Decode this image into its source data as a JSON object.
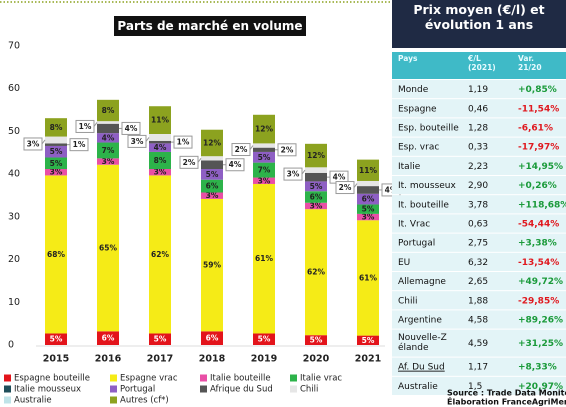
{
  "chart_data": {
    "type": "stacked_bar",
    "title": "Parts de marché en volume",
    "categories": [
      "2015",
      "2016",
      "2017",
      "2018",
      "2019",
      "2020",
      "2021"
    ],
    "ylim": [
      0,
      70
    ],
    "yticks": [
      0,
      10,
      20,
      30,
      40,
      50,
      60,
      70
    ],
    "grid": false,
    "series": [
      {
        "name": "Espagne bouteille",
        "color": "#e3141b",
        "values": [
          2.7,
          3.2,
          2.7,
          3.2,
          2.7,
          2.3,
          2.2
        ],
        "value_labels": [
          "5%",
          "6%",
          "5%",
          "6%",
          "5%",
          "5%",
          "5%"
        ]
      },
      {
        "name": "Espagne vrac",
        "color": "#f5eb17",
        "values": [
          37,
          39,
          37,
          31,
          35,
          29.5,
          27
        ],
        "value_labels": [
          "68%",
          "65%",
          "62%",
          "59%",
          "61%",
          "62%",
          "61%"
        ]
      },
      {
        "name": "Italie bouteille",
        "color": "#e94fa6",
        "values": [
          1.5,
          1.5,
          1.5,
          1.5,
          1.5,
          1.5,
          1.5
        ],
        "value_labels": [
          "3%",
          "3%",
          "3%",
          "3%",
          "3%",
          "3%",
          "3%"
        ]
      },
      {
        "name": "Italie vrac",
        "color": "#2db34a",
        "values": [
          2.7,
          3.7,
          4,
          3,
          3.5,
          2.7,
          2.2
        ],
        "value_labels": [
          "5%",
          "7%",
          "8%",
          "6%",
          "7%",
          "6%",
          "5%"
        ]
      },
      {
        "name": "Italie mousseux",
        "color": "#1f4e5a",
        "values": [
          null,
          null,
          null,
          null,
          null,
          null,
          null
        ]
      },
      {
        "name": "Portugal",
        "color": "#8e5fc4",
        "values": [
          2.7,
          2.2,
          2,
          2.5,
          2.5,
          2.3,
          2.5
        ],
        "value_labels": [
          "5%",
          "4%",
          "4%",
          "5%",
          "5%",
          "5%",
          "6%"
        ]
      },
      {
        "name": "Afrique du Sud",
        "color": "#555555",
        "values": [
          0.6,
          2.2,
          0.6,
          2,
          1,
          2,
          1.8
        ],
        "value_labels": [
          "1%",
          "4%",
          "1%",
          "4%",
          "2%",
          "4%",
          "4%"
        ]
      },
      {
        "name": "Chili",
        "color": "#e6e6e6",
        "values": [
          1.6,
          0.6,
          1.6,
          1,
          1,
          1.3,
          1.2
        ],
        "value_labels": [
          "3%",
          "1%",
          "3%",
          "2%",
          "2%",
          "3%",
          "2%"
        ]
      },
      {
        "name": "Australie",
        "color": "#bfe3e8",
        "values": [
          null,
          null,
          null,
          null,
          null,
          null,
          null
        ]
      },
      {
        "name": "Autres (cf*)",
        "color": "#8ca21f",
        "values": [
          4.3,
          5,
          6.5,
          6.2,
          6.7,
          5.5,
          5
        ],
        "value_labels": [
          "8%",
          "8%",
          "11%",
          "12%",
          "12%",
          "12%",
          "11%"
        ]
      }
    ]
  },
  "table": {
    "title": "Prix moyen (€/l) et évolution 1 ans",
    "header": [
      "Pays",
      "€/L (2021)",
      "Var. 21/20"
    ],
    "rows": [
      [
        "Monde",
        "1,19",
        "+0,85%"
      ],
      [
        "Espagne",
        "0,46",
        "-11,54%"
      ],
      [
        "Esp. bouteille",
        "1,28",
        "-6,61%"
      ],
      [
        "Esp. vrac",
        "0,33",
        "-17,97%"
      ],
      [
        "Italie",
        "2,23",
        "+14,95%"
      ],
      [
        "It. mousseux",
        "2,90",
        "+0,26%"
      ],
      [
        "It. bouteille",
        "3,78",
        "+118,68%"
      ],
      [
        "It. Vrac",
        "0,63",
        "-54,44%"
      ],
      [
        "Portugal",
        "2,75",
        "+3,38%"
      ],
      [
        "EU",
        "6,32",
        "-13,54%"
      ],
      [
        "Allemagne",
        "2,65",
        "+49,72%"
      ],
      [
        "Chili",
        "1,88",
        "-29,85%"
      ],
      [
        "Argentine",
        "4,58",
        "+89,26%"
      ],
      [
        "Nouvelle-Zélande",
        "4,59",
        "+31,25%"
      ],
      [
        "Af. Du Sud",
        "1,17",
        "+8,33%"
      ],
      [
        "Australie",
        "1,5",
        "+20,97%"
      ]
    ]
  },
  "source": [
    "Source : Trade Data Monitor",
    "Élaboration FranceAgriMer"
  ]
}
